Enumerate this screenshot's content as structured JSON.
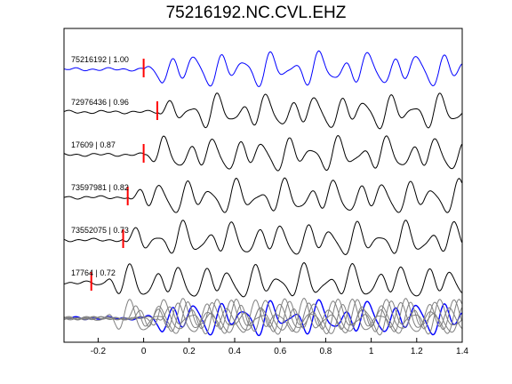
{
  "chart_data": {
    "type": "line",
    "title": "75216192.NC.CVL.EHZ",
    "xlabel": "",
    "ylabel": "",
    "xlim": [
      -0.35,
      1.4
    ],
    "xticks": [
      -0.2,
      0,
      0.2,
      0.4,
      0.6,
      0.8,
      1,
      1.2,
      1.4
    ],
    "xtick_labels": [
      "-0.2",
      "0",
      "0.2",
      "0.4",
      "0.6",
      "0.8",
      "1",
      "1.2",
      "1.4"
    ],
    "grid": false,
    "colors": {
      "reference": "#0000ff",
      "trace": "#000000",
      "pick": "#ff0000",
      "overlay": "#808080"
    },
    "series": [
      {
        "label": "75216192 | 1.00",
        "pick": 0.0,
        "color": "#0000ff"
      },
      {
        "label": "72976436 | 0.96",
        "pick": 0.06,
        "color": "#000000"
      },
      {
        "label": "17609 | 0.87",
        "pick": 0.0,
        "color": "#000000"
      },
      {
        "label": "73597981 | 0.82",
        "pick": -0.07,
        "color": "#000000"
      },
      {
        "label": "73552075 | 0.73",
        "pick": -0.09,
        "color": "#000000"
      },
      {
        "label": "17764 | 0.72",
        "pick": -0.23,
        "color": "#000000"
      }
    ]
  }
}
